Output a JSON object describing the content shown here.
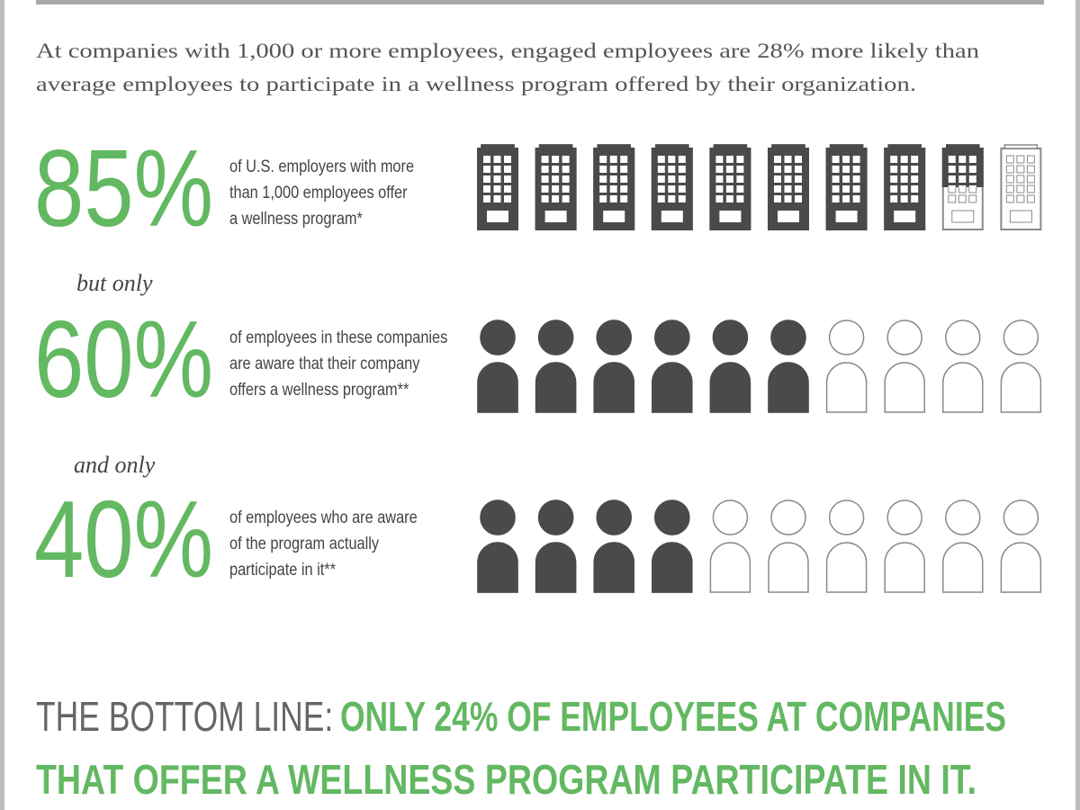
{
  "intro": [
    "At companies with 1,000 or more employees, engaged employees are 28% more likely than",
    "average employees to participate in a wellness program offered by their organization."
  ],
  "rows": [
    {
      "value": 85,
      "label": "85%",
      "icon": "building",
      "description": [
        "of U.S. employers with more",
        "than 1,000 employees offer",
        "a wellness program*"
      ]
    },
    {
      "value": 60,
      "label": "60%",
      "icon": "person",
      "description": [
        "of employees in these companies",
        "are aware that their company",
        "offers a wellness program**"
      ]
    },
    {
      "value": 40,
      "label": "40%",
      "icon": "person",
      "description": [
        "of employees who are aware",
        "of the program actually",
        "participate in it**"
      ]
    }
  ],
  "connectors": [
    "but only",
    "and only"
  ],
  "bottom_line": {
    "lead": "THE BOTTOM LINE:",
    "lines": [
      "ONLY 24% OF EMPLOYEES AT COMPANIES",
      "THAT OFFER A WELLNESS PROGRAM PARTICIPATE IN IT."
    ]
  }
}
